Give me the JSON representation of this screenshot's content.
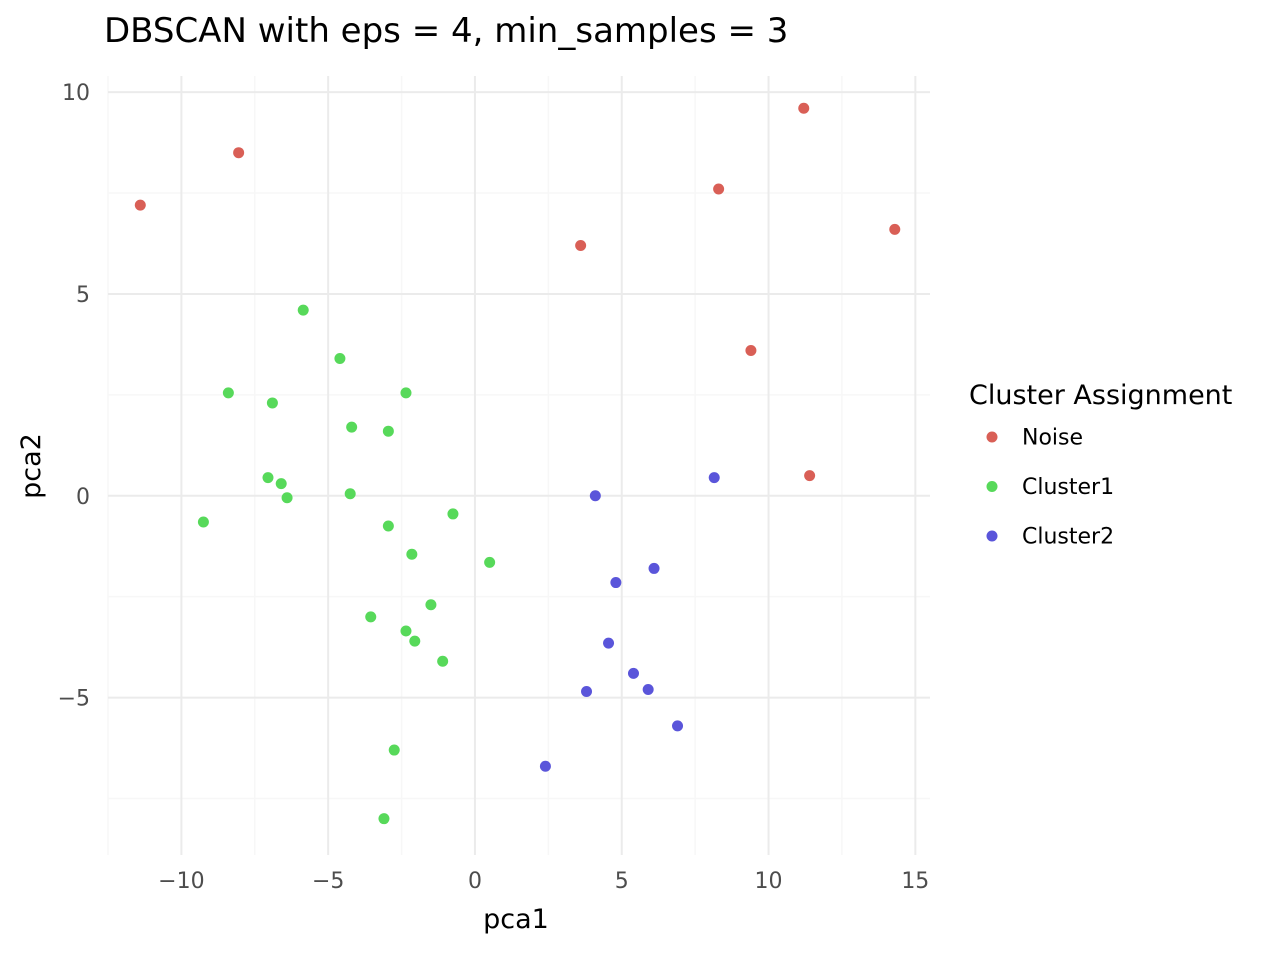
{
  "chart_data": {
    "type": "scatter",
    "title": "DBSCAN with eps = 4, min_samples = 3",
    "xlabel": "pca1",
    "ylabel": "pca2",
    "xlim": [
      -12.5,
      15.5
    ],
    "ylim": [
      -8.9,
      10.4
    ],
    "x_ticks": [
      -10,
      -5,
      0,
      5,
      10,
      15
    ],
    "y_ticks": [
      -5,
      0,
      5,
      10
    ],
    "x_tick_labels": [
      "−10",
      "−5",
      "0",
      "5",
      "10",
      "15"
    ],
    "y_tick_labels": [
      "−5",
      "0",
      "5",
      "10"
    ],
    "grid": true,
    "legend": {
      "title": "Cluster Assignment",
      "position": "right"
    },
    "series": [
      {
        "name": "Noise",
        "color": "#d95f56",
        "points": [
          [
            -11.4,
            7.2
          ],
          [
            -8.05,
            8.5
          ],
          [
            3.6,
            6.2
          ],
          [
            8.3,
            7.6
          ],
          [
            11.2,
            9.6
          ],
          [
            14.3,
            6.6
          ],
          [
            9.4,
            3.6
          ],
          [
            11.4,
            0.5
          ]
        ]
      },
      {
        "name": "Cluster1",
        "color": "#57d95a",
        "points": [
          [
            -5.85,
            4.6
          ],
          [
            -4.6,
            3.4
          ],
          [
            -8.4,
            2.55
          ],
          [
            -6.9,
            2.3
          ],
          [
            -2.35,
            2.55
          ],
          [
            -4.2,
            1.7
          ],
          [
            -2.95,
            1.6
          ],
          [
            -7.05,
            0.45
          ],
          [
            -6.6,
            0.3
          ],
          [
            -6.4,
            -0.05
          ],
          [
            -4.25,
            0.05
          ],
          [
            -9.25,
            -0.65
          ],
          [
            -2.95,
            -0.75
          ],
          [
            -0.75,
            -0.45
          ],
          [
            -2.15,
            -1.45
          ],
          [
            0.5,
            -1.65
          ],
          [
            -1.5,
            -2.7
          ],
          [
            -3.55,
            -3.0
          ],
          [
            -2.35,
            -3.35
          ],
          [
            -2.05,
            -3.6
          ],
          [
            -1.1,
            -4.1
          ],
          [
            -2.75,
            -6.3
          ],
          [
            -3.1,
            -8.0
          ]
        ]
      },
      {
        "name": "Cluster2",
        "color": "#5a55da",
        "points": [
          [
            4.1,
            0.0
          ],
          [
            8.15,
            0.45
          ],
          [
            6.1,
            -1.8
          ],
          [
            4.8,
            -2.15
          ],
          [
            4.55,
            -3.65
          ],
          [
            5.4,
            -4.4
          ],
          [
            5.9,
            -4.8
          ],
          [
            3.8,
            -4.85
          ],
          [
            6.9,
            -5.7
          ],
          [
            2.4,
            -6.7
          ]
        ]
      }
    ]
  }
}
